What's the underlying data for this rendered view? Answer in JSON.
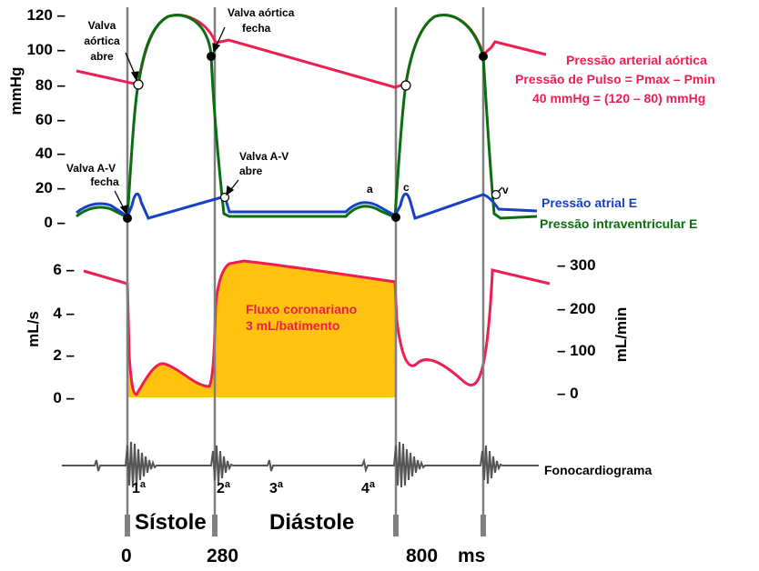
{
  "axes": {
    "top_left_ticks": [
      "120 –",
      "100 –",
      "80 –",
      "60 –",
      "40 –",
      "20 –",
      "0 –"
    ],
    "top_left_label": "mmHg",
    "flow_left_ticks": [
      "6 –",
      "4 –",
      "2 –",
      "0 –"
    ],
    "flow_left_label": "mL/s",
    "flow_right_ticks": [
      "– 300",
      "– 200",
      "– 100",
      "– 0"
    ],
    "flow_right_label": "mL/min",
    "x_ticks": [
      "0",
      "280",
      "800",
      "ms"
    ]
  },
  "annotations": {
    "valva_aortica_abre": [
      "Valva",
      "aórtica",
      "abre"
    ],
    "valva_aortica_fecha": [
      "Valva aórtica",
      "fecha"
    ],
    "valva_av_fecha": [
      "Valva A-V",
      "fecha"
    ],
    "valva_av_abre": [
      "Valva A-V",
      "abre"
    ],
    "wave_a": "a",
    "wave_c": "c",
    "wave_v": "v"
  },
  "legend": {
    "aortic_pressure": "Pressão arterial aórtica",
    "pulse_pressure": "Pressão de Pulso = Pmax – Pmin",
    "pulse_calc": "40 mmHg = (120 – 80) mmHg",
    "atrial_pressure": "Pressão atrial E",
    "ventricular_pressure": "Pressão intraventricular E",
    "coronary_flow": "Fluxo coronariano",
    "coronary_flow_value": "3 mL/batimento",
    "phonocardiogram": "Fonocardiograma"
  },
  "heart_sounds": {
    "first": "1",
    "second": "2",
    "third": "3",
    "fourth": "4",
    "sup": "a"
  },
  "phases": {
    "systole": "Sístole",
    "diastole": "Diástole"
  },
  "colors": {
    "aortic": "#ee1d52",
    "ventricular": "#0a6e10",
    "atrial": "#1640c8",
    "flow_fill": "#ffc20e",
    "flow_line": "#ee1d52",
    "divider": "#808080"
  }
}
